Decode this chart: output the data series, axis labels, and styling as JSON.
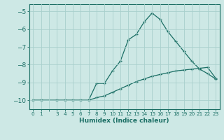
{
  "xlabel": "Humidex (Indice chaleur)",
  "ylabel": "",
  "background_color": "#cde8e5",
  "line_color": "#1a6e64",
  "grid_color": "#a8d0cc",
  "xlim": [
    -0.5,
    23.5
  ],
  "ylim": [
    -10.5,
    -4.6
  ],
  "yticks": [
    -10,
    -9,
    -8,
    -7,
    -6,
    -5
  ],
  "xtick_vals": [
    0,
    1,
    3,
    4,
    5,
    6,
    7,
    8,
    9,
    10,
    11,
    12,
    13,
    14,
    15,
    16,
    17,
    18,
    19,
    20,
    21,
    22,
    23
  ],
  "line1_x": [
    0,
    1,
    3,
    4,
    5,
    6,
    7,
    8,
    9,
    10,
    11,
    12,
    13,
    14,
    15,
    16,
    17,
    18,
    19,
    20,
    21,
    22,
    23
  ],
  "line1_y": [
    -10.0,
    -10.0,
    -10.0,
    -10.0,
    -10.0,
    -10.0,
    -10.0,
    -9.85,
    -9.75,
    -9.55,
    -9.35,
    -9.15,
    -8.95,
    -8.8,
    -8.65,
    -8.55,
    -8.45,
    -8.35,
    -8.3,
    -8.25,
    -8.2,
    -8.15,
    -8.75
  ],
  "line2_x": [
    0,
    1,
    3,
    4,
    5,
    6,
    7,
    8,
    9,
    10,
    11,
    12,
    13,
    14,
    15,
    16,
    17,
    18,
    19,
    20,
    21,
    22,
    23
  ],
  "line2_y": [
    -10.0,
    -10.0,
    -10.0,
    -10.0,
    -10.0,
    -10.0,
    -10.0,
    -9.05,
    -9.05,
    -8.35,
    -7.8,
    -6.6,
    -6.3,
    -5.6,
    -5.1,
    -5.45,
    -6.15,
    -6.7,
    -7.25,
    -7.8,
    -8.25,
    -8.5,
    -8.8
  ]
}
